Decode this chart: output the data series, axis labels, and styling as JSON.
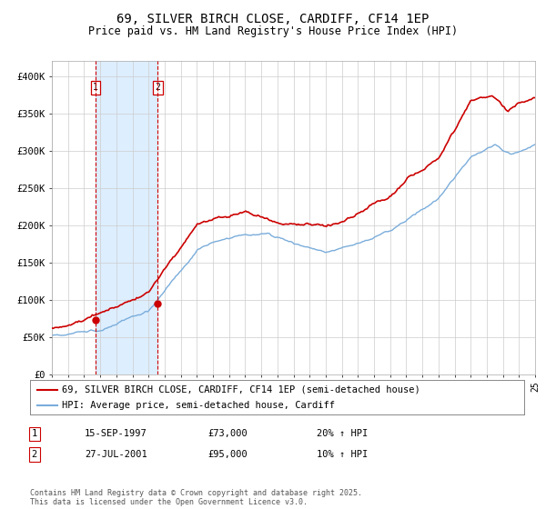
{
  "title": "69, SILVER BIRCH CLOSE, CARDIFF, CF14 1EP",
  "subtitle": "Price paid vs. HM Land Registry's House Price Index (HPI)",
  "title_fontsize": 10,
  "subtitle_fontsize": 8.5,
  "x_start_year": 1995,
  "x_end_year": 2025,
  "ylim": [
    0,
    420000
  ],
  "yticks": [
    0,
    50000,
    100000,
    150000,
    200000,
    250000,
    300000,
    350000,
    400000
  ],
  "ytick_labels": [
    "£0",
    "£50K",
    "£100K",
    "£150K",
    "£200K",
    "£250K",
    "£300K",
    "£350K",
    "£400K"
  ],
  "line_color_price": "#cc0000",
  "line_color_hpi": "#7aaddb",
  "marker_color": "#cc0000",
  "vline_color": "#cc0000",
  "shading_color": "#ddeeff",
  "purchase1_date": 1997.71,
  "purchase1_price": 73000,
  "purchase1_label": "1",
  "purchase2_date": 2001.57,
  "purchase2_price": 95000,
  "purchase2_label": "2",
  "legend_label_price": "69, SILVER BIRCH CLOSE, CARDIFF, CF14 1EP (semi-detached house)",
  "legend_label_hpi": "HPI: Average price, semi-detached house, Cardiff",
  "table_row1": [
    "1",
    "15-SEP-1997",
    "£73,000",
    "20% ↑ HPI"
  ],
  "table_row2": [
    "2",
    "27-JUL-2001",
    "£95,000",
    "10% ↑ HPI"
  ],
  "footer": "Contains HM Land Registry data © Crown copyright and database right 2025.\nThis data is licensed under the Open Government Licence v3.0.",
  "bg_color": "#ffffff",
  "plot_bg_color": "#ffffff",
  "grid_color": "#cccccc"
}
